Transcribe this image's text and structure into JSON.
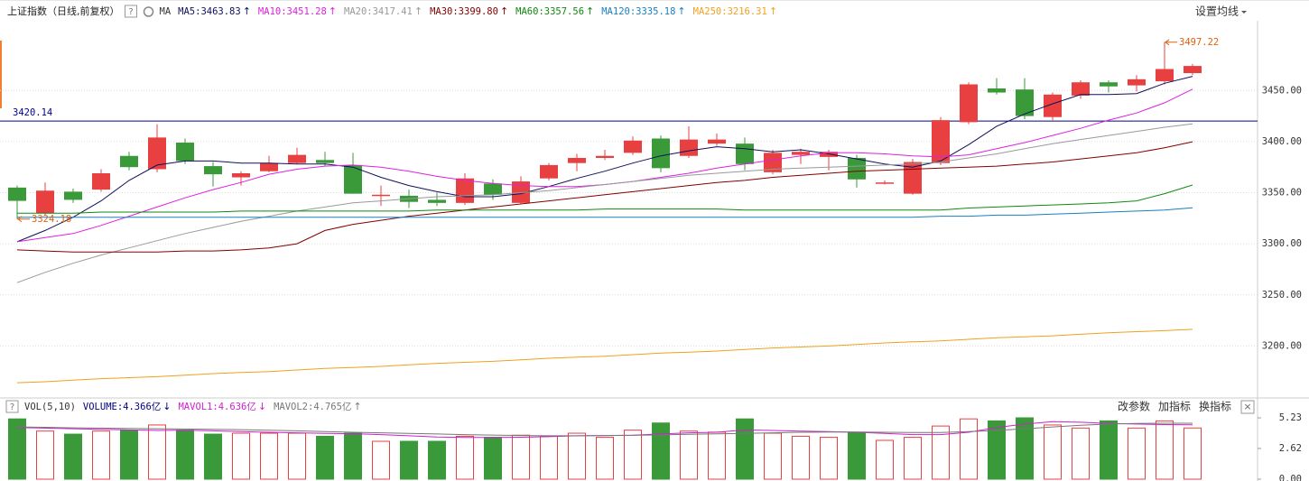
{
  "chart_data": [
    {
      "type": "candlestick",
      "title": "上证指数（日线,前复权）",
      "help": "?",
      "ma_label": "MA",
      "settings": "设置均线",
      "up_color": "#e84040",
      "down_color": "#3a9a3a",
      "ylim": [
        3150,
        3520
      ],
      "yticks": [
        {
          "value": 3200,
          "label": "3200.00"
        },
        {
          "value": 3250,
          "label": "3250.00"
        },
        {
          "value": 3300,
          "label": "3300.00"
        },
        {
          "value": 3350,
          "label": "3350.00"
        },
        {
          "value": 3400,
          "label": "3400.00"
        },
        {
          "value": 3450,
          "label": "3450.00"
        }
      ],
      "grid": true,
      "open": [
        3355,
        3330,
        3351,
        3353,
        3386,
        3373,
        3399,
        3376,
        3365,
        3371,
        3379,
        3382,
        3377,
        3347,
        3347,
        3343,
        3340,
        3359,
        3340,
        3364,
        3379,
        3384,
        3389,
        3403,
        3386,
        3398,
        3398,
        3370,
        3387,
        3385,
        3384,
        3359,
        3349,
        3379,
        3419,
        3452,
        3451,
        3424,
        3445,
        3458,
        3455,
        3459,
        3467
      ],
      "high": [
        3357,
        3360,
        3354,
        3373,
        3390,
        3417,
        3403,
        3380,
        3371,
        3386,
        3394,
        3390,
        3389,
        3357,
        3353,
        3350,
        3369,
        3363,
        3366,
        3379,
        3388,
        3392,
        3405,
        3406,
        3415,
        3408,
        3404,
        3392,
        3393,
        3392,
        3387,
        3362,
        3383,
        3424,
        3458,
        3462,
        3462,
        3448,
        3460,
        3460,
        3465,
        3497.22,
        3476
      ],
      "low": [
        3324.18,
        3328,
        3340,
        3351,
        3372,
        3370,
        3378,
        3356,
        3357,
        3370,
        3378,
        3376,
        3349,
        3337,
        3335,
        3337,
        3338,
        3343,
        3339,
        3362,
        3371,
        3382,
        3387,
        3370,
        3384,
        3396,
        3372,
        3368,
        3378,
        3372,
        3355,
        3358,
        3348,
        3377,
        3417,
        3446,
        3422,
        3421,
        3442,
        3448,
        3449,
        3456,
        3465
      ],
      "close": [
        3342,
        3352,
        3343,
        3369,
        3375,
        3404,
        3381,
        3368,
        3369,
        3379,
        3387,
        3379,
        3349,
        3348,
        3341,
        3340,
        3364,
        3348,
        3361,
        3377,
        3384,
        3386,
        3401,
        3374,
        3402,
        3402,
        3378,
        3389,
        3390,
        3390,
        3363,
        3360,
        3380,
        3421,
        3456,
        3448,
        3425,
        3446,
        3458,
        3454,
        3461,
        3471,
        3474
      ],
      "series": [
        {
          "name": "MA5",
          "label": "MA5:3463.83",
          "arrow": "↑",
          "color": "#10105a",
          "values": [
            3302,
            3313,
            3326,
            3342,
            3362,
            3377,
            3381,
            3381,
            3379,
            3379,
            3378,
            3378,
            3375,
            3365,
            3357,
            3351,
            3346,
            3346,
            3349,
            3356,
            3364,
            3371,
            3379,
            3386,
            3391,
            3395,
            3393,
            3390,
            3392,
            3388,
            3383,
            3378,
            3375,
            3381,
            3397,
            3415,
            3427,
            3437,
            3446,
            3446,
            3447,
            3457,
            3463.83
          ]
        },
        {
          "name": "MA10",
          "label": "MA10:3451.28",
          "arrow": "↑",
          "color": "#dd22dd",
          "values": [
            3302,
            3306,
            3310,
            3318,
            3327,
            3336,
            3345,
            3353,
            3360,
            3368,
            3373,
            3376,
            3377,
            3375,
            3371,
            3366,
            3362,
            3359,
            3357,
            3356,
            3356,
            3358,
            3361,
            3365,
            3369,
            3374,
            3378,
            3382,
            3386,
            3389,
            3389,
            3388,
            3386,
            3385,
            3387,
            3393,
            3399,
            3406,
            3413,
            3421,
            3428,
            3438,
            3451.28
          ]
        },
        {
          "name": "MA20",
          "label": "MA20:3417.41",
          "arrow": "↑",
          "color": "#999999",
          "values": [
            3262,
            3272,
            3281,
            3289,
            3296,
            3303,
            3310,
            3316,
            3322,
            3327,
            3332,
            3336,
            3340,
            3342,
            3344,
            3346,
            3347,
            3348,
            3350,
            3352,
            3355,
            3358,
            3361,
            3364,
            3367,
            3369,
            3371,
            3373,
            3374,
            3375,
            3376,
            3377,
            3378,
            3380,
            3384,
            3388,
            3393,
            3398,
            3402,
            3406,
            3410,
            3414,
            3417.41
          ]
        },
        {
          "name": "MA30",
          "label": "MA30:3399.80",
          "arrow": "↑",
          "color": "#800000",
          "values": [
            3294,
            3293,
            3292,
            3292,
            3292,
            3292,
            3293,
            3293,
            3294,
            3296,
            3300,
            3313,
            3319,
            3323,
            3327,
            3330,
            3333,
            3336,
            3339,
            3342,
            3345,
            3348,
            3351,
            3354,
            3357,
            3360,
            3362,
            3365,
            3367,
            3369,
            3371,
            3372,
            3373,
            3374,
            3375,
            3376,
            3378,
            3380,
            3383,
            3386,
            3389,
            3394,
            3399.8
          ]
        },
        {
          "name": "MA60",
          "label": "MA60:3357.56",
          "arrow": "↑",
          "color": "#118811",
          "values": [
            3330,
            3330,
            3330,
            3331,
            3331,
            3331,
            3331,
            3331,
            3332,
            3332,
            3332,
            3332,
            3332,
            3332,
            3332,
            3333,
            3333,
            3333,
            3333,
            3333,
            3333,
            3334,
            3334,
            3334,
            3334,
            3334,
            3333,
            3333,
            3333,
            3333,
            3333,
            3333,
            3333,
            3333,
            3335,
            3336,
            3337,
            3338,
            3339,
            3340,
            3342,
            3349,
            3357.56
          ]
        },
        {
          "name": "MA120",
          "label": "MA120:3335.18",
          "arrow": "↑",
          "color": "#1a7fc0",
          "values": [
            3326,
            3326,
            3326,
            3326,
            3326,
            3326,
            3326,
            3326,
            3326,
            3326,
            3326,
            3326,
            3326,
            3326,
            3326,
            3326,
            3326,
            3326,
            3326,
            3326,
            3326,
            3326,
            3326,
            3326,
            3326,
            3326,
            3326,
            3326,
            3326,
            3326,
            3326,
            3326,
            3326,
            3327,
            3327,
            3328,
            3328,
            3329,
            3330,
            3331,
            3332,
            3333,
            3335.18
          ]
        },
        {
          "name": "MA250",
          "label": "MA250:3216.31",
          "arrow": "↑",
          "color": "#f0a020",
          "values": [
            3164,
            3165,
            3166.5,
            3168,
            3169,
            3170,
            3171.5,
            3173,
            3174,
            3175,
            3176.5,
            3178,
            3179,
            3180,
            3181.5,
            3183,
            3184,
            3185,
            3186.5,
            3188,
            3189,
            3190,
            3191.5,
            3193,
            3194,
            3195,
            3196.5,
            3198,
            3199,
            3200,
            3201.5,
            3203,
            3204,
            3205,
            3206.5,
            3208,
            3209,
            3210,
            3211.5,
            3213,
            3214,
            3215,
            3216.31
          ]
        }
      ],
      "hline": {
        "value": 3420.14,
        "color": "#00008b"
      },
      "max_label": 3497.22,
      "min_label": 3324.18,
      "annotation_color": "#e06010"
    },
    {
      "type": "volume",
      "help": "?",
      "title": "VOL(5,10)",
      "legend": {
        "label": "VOLUME:4.366亿",
        "arrow": "↓",
        "color": "#000080"
      },
      "values": [
        5.14,
        4.1,
        3.84,
        4.1,
        4.18,
        4.62,
        4.18,
        3.84,
        3.92,
        3.92,
        3.92,
        3.66,
        3.92,
        3.23,
        3.23,
        3.23,
        3.66,
        3.57,
        3.75,
        3.66,
        3.92,
        3.57,
        4.18,
        4.79,
        4.1,
        4.01,
        5.14,
        3.92,
        3.66,
        3.57,
        4.01,
        3.31,
        3.57,
        4.53,
        5.14,
        4.97,
        5.23,
        4.62,
        4.36,
        4.97,
        4.36,
        4.97,
        4.366
      ],
      "series": [
        {
          "name": "MAVOL1",
          "label": "MAVOL1:4.636亿",
          "arrow": "↓",
          "color": "#cc22cc",
          "values": [
            4.4,
            4.35,
            4.3,
            4.25,
            4.2,
            4.15,
            4.18,
            4.12,
            4.05,
            4.0,
            3.95,
            3.9,
            3.88,
            3.8,
            3.7,
            3.6,
            3.55,
            3.55,
            3.58,
            3.62,
            3.7,
            3.72,
            3.75,
            3.85,
            3.95,
            4.0,
            4.2,
            4.15,
            4.1,
            4.05,
            4.0,
            3.9,
            3.8,
            3.8,
            4.0,
            4.4,
            4.7,
            4.9,
            4.85,
            4.75,
            4.7,
            4.65,
            4.636
          ]
        },
        {
          "name": "MAVOL2",
          "label": "MAVOL2:4.765亿",
          "arrow": "↑",
          "color": "#777777",
          "values": [
            4.45,
            4.42,
            4.38,
            4.35,
            4.32,
            4.3,
            4.28,
            4.25,
            4.22,
            4.18,
            4.12,
            4.05,
            4.0,
            3.95,
            3.9,
            3.85,
            3.8,
            3.76,
            3.72,
            3.7,
            3.7,
            3.72,
            3.74,
            3.78,
            3.82,
            3.86,
            3.9,
            3.95,
            4.0,
            4.02,
            4.02,
            4.0,
            3.98,
            3.98,
            4.05,
            4.15,
            4.3,
            4.45,
            4.6,
            4.7,
            4.75,
            4.77,
            4.765
          ]
        }
      ],
      "ylim": [
        0,
        5.23
      ],
      "yticks": [
        {
          "value": 0,
          "label": "0.00"
        },
        2.62,
        5.23
      ],
      "buttons": [
        "改参数",
        "加指标",
        "换指标"
      ],
      "close": "×"
    }
  ]
}
